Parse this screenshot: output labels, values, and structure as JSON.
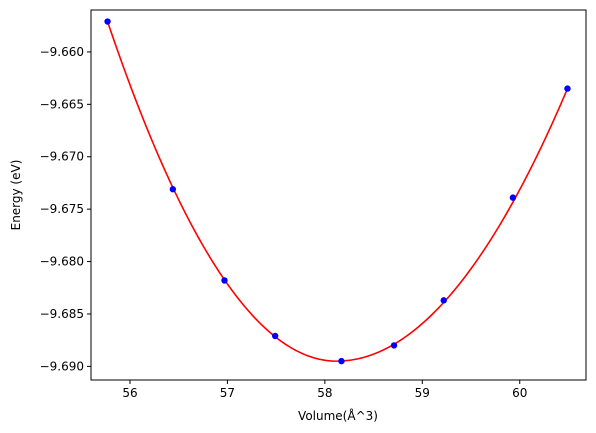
{
  "chart_data": {
    "type": "scatter",
    "title": "",
    "xlabel": "Volume(Å^3)",
    "ylabel": "Energy (eV)",
    "xlim": [
      55.6,
      60.68
    ],
    "ylim": [
      -9.6913,
      -9.656
    ],
    "xticks": [
      56,
      57,
      58,
      59,
      60
    ],
    "xtick_labels": [
      "56",
      "57",
      "58",
      "59",
      "60"
    ],
    "yticks": [
      -9.66,
      -9.665,
      -9.67,
      -9.675,
      -9.68,
      -9.685,
      -9.69
    ],
    "ytick_labels": [
      "−9.660",
      "−9.665",
      "−9.670",
      "−9.675",
      "−9.680",
      "−9.685",
      "−9.690"
    ],
    "grid": false,
    "legend": "none",
    "series": [
      {
        "kind": "points",
        "color": "#0000ff",
        "x": [
          55.77,
          56.44,
          56.97,
          57.49,
          58.17,
          58.71,
          59.22,
          59.93,
          60.49
        ],
        "y": [
          -9.6571,
          -9.6731,
          -9.6818,
          -9.6871,
          -9.6895,
          -9.688,
          -9.6837,
          -9.6739,
          -9.6635
        ]
      },
      {
        "kind": "fit-curve",
        "color": "#ff0000",
        "x_range": [
          55.77,
          60.49
        ],
        "minimum": {
          "x": 58.12,
          "y": -9.6895
        },
        "anchors": [
          {
            "x": 55.77,
            "y": -9.6571
          },
          {
            "x": 58.12,
            "y": -9.6895
          },
          {
            "x": 60.49,
            "y": -9.6635
          }
        ]
      }
    ]
  }
}
